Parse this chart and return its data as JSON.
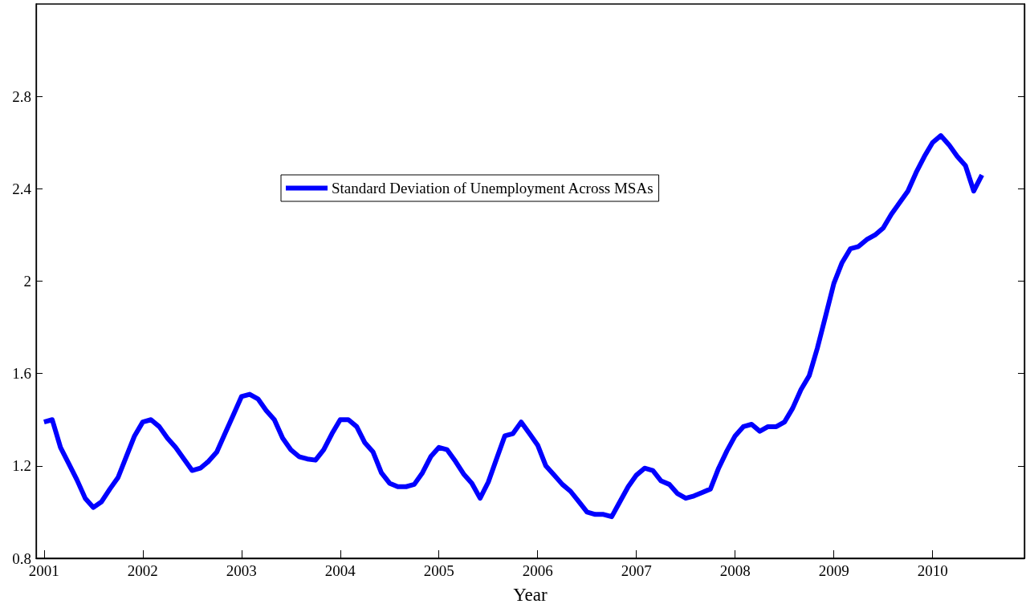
{
  "chart_data": {
    "type": "line",
    "xlabel": "Year",
    "xlim": [
      2000.92,
      2010.93
    ],
    "xticks": [
      2001,
      2002,
      2003,
      2004,
      2005,
      2006,
      2007,
      2008,
      2009,
      2010
    ],
    "ylim": [
      0.8,
      3.2
    ],
    "yticks": [
      0.8,
      1.2,
      1.6,
      2,
      2.4,
      2.8
    ],
    "grid": false,
    "legend": "top",
    "marker": "none",
    "line_style": "solid",
    "x": [
      2001,
      2001.083,
      2001.167,
      2001.25,
      2001.333,
      2001.417,
      2001.5,
      2001.583,
      2001.667,
      2001.75,
      2001.833,
      2001.917,
      2002,
      2002.083,
      2002.167,
      2002.25,
      2002.333,
      2002.417,
      2002.5,
      2002.583,
      2002.667,
      2002.75,
      2002.833,
      2002.917,
      2003,
      2003.083,
      2003.167,
      2003.25,
      2003.333,
      2003.417,
      2003.5,
      2003.583,
      2003.667,
      2003.75,
      2003.833,
      2003.917,
      2004,
      2004.083,
      2004.167,
      2004.25,
      2004.333,
      2004.417,
      2004.5,
      2004.583,
      2004.667,
      2004.75,
      2004.833,
      2004.917,
      2005,
      2005.083,
      2005.167,
      2005.25,
      2005.333,
      2005.417,
      2005.5,
      2005.583,
      2005.667,
      2005.75,
      2005.833,
      2005.917,
      2006,
      2006.083,
      2006.167,
      2006.25,
      2006.333,
      2006.417,
      2006.5,
      2006.583,
      2006.667,
      2006.75,
      2006.833,
      2006.917,
      2007,
      2007.083,
      2007.167,
      2007.25,
      2007.333,
      2007.417,
      2007.5,
      2007.583,
      2007.667,
      2007.75,
      2007.833,
      2007.917,
      2008,
      2008.083,
      2008.167,
      2008.25,
      2008.333,
      2008.417,
      2008.5,
      2008.583,
      2008.667,
      2008.75,
      2008.833,
      2008.917,
      2009,
      2009.083,
      2009.167,
      2009.25,
      2009.333,
      2009.417,
      2009.5,
      2009.583,
      2009.667,
      2009.75,
      2009.833,
      2009.917,
      2010,
      2010.083,
      2010.167,
      2010.25,
      2010.333,
      2010.417,
      2010.5
    ],
    "series": [
      {
        "name": "Standard Deviation of Unemployment Across MSAs",
        "color": "#0000ff",
        "values": [
          1.39,
          1.4,
          1.28,
          1.21,
          1.14,
          1.06,
          1.02,
          1.045,
          1.1,
          1.15,
          1.24,
          1.33,
          1.39,
          1.4,
          1.37,
          1.32,
          1.28,
          1.23,
          1.18,
          1.19,
          1.22,
          1.26,
          1.34,
          1.42,
          1.5,
          1.51,
          1.49,
          1.44,
          1.4,
          1.32,
          1.27,
          1.24,
          1.23,
          1.225,
          1.27,
          1.34,
          1.4,
          1.4,
          1.37,
          1.3,
          1.26,
          1.17,
          1.125,
          1.11,
          1.11,
          1.12,
          1.17,
          1.24,
          1.28,
          1.27,
          1.22,
          1.165,
          1.125,
          1.06,
          1.13,
          1.23,
          1.33,
          1.34,
          1.39,
          1.34,
          1.29,
          1.2,
          1.16,
          1.12,
          1.09,
          1.045,
          1.0,
          0.99,
          0.99,
          0.98,
          1.045,
          1.11,
          1.16,
          1.19,
          1.18,
          1.135,
          1.12,
          1.08,
          1.06,
          1.07,
          1.085,
          1.1,
          1.19,
          1.265,
          1.33,
          1.37,
          1.38,
          1.35,
          1.37,
          1.37,
          1.39,
          1.45,
          1.53,
          1.59,
          1.71,
          1.85,
          1.99,
          2.08,
          2.14,
          2.15,
          2.18,
          2.2,
          2.23,
          2.29,
          2.34,
          2.39,
          2.47,
          2.54,
          2.6,
          2.63,
          2.59,
          2.54,
          2.5,
          2.39,
          2.46
        ]
      }
    ]
  }
}
